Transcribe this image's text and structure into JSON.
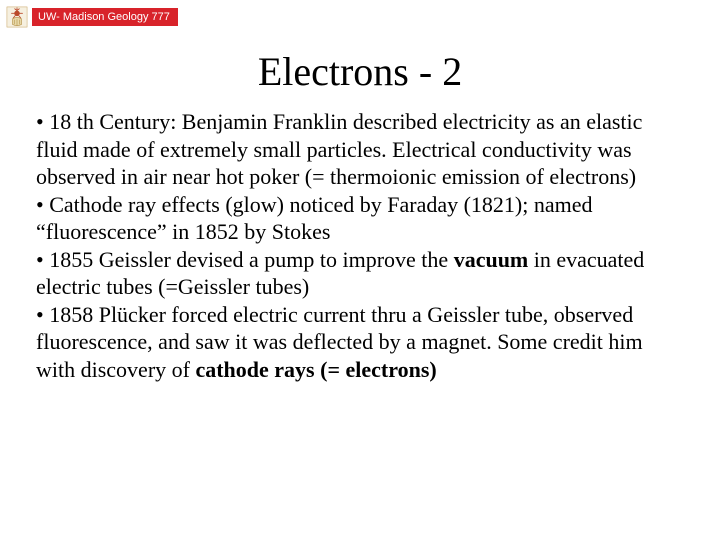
{
  "header": {
    "badge_text": "UW- Madison Geology 777",
    "badge_bg": "#d8232a",
    "badge_fg": "#ffffff"
  },
  "slide": {
    "title": "Electrons - 2",
    "title_fontsize": 40,
    "body_fontsize": 22,
    "background": "#ffffff",
    "text_color": "#000000",
    "bullets": [
      {
        "text": "18 th Century: Benjamin Franklin described electricity as an elastic fluid made of extremely small particles. Electrical conductivity was observed in air near hot poker (= thermoionic emission of electrons)"
      },
      {
        "text": "Cathode ray effects (glow) noticed by Faraday (1821); named “fluorescence” in 1852 by Stokes"
      },
      {
        "text_pre": "1855 Geissler devised a pump to improve the ",
        "bold": "vacuum",
        "text_post": " in evacuated electric tubes (=Geissler tubes)"
      },
      {
        "text_pre": "1858 Plücker forced electric current thru a Geissler tube, observed fluorescence, and saw it was deflected by a magnet.  Some credit him with discovery of ",
        "bold": "cathode rays (= electrons)"
      }
    ]
  }
}
